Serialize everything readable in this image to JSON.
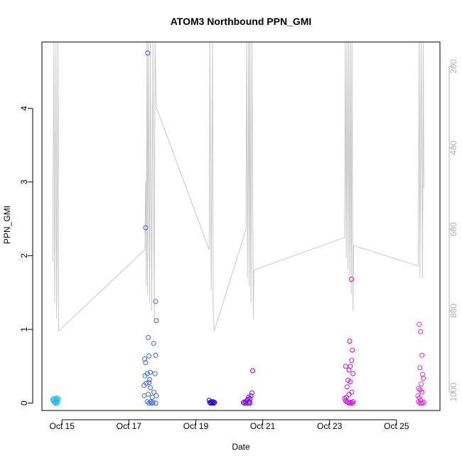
{
  "chart_data": {
    "type": "scatter",
    "title": "ATOM3 Northbound PPN_GMI",
    "xlabel": "Date",
    "ylabel": "PPN_GMI",
    "x_ticks": [
      {
        "day": 15,
        "label": "Oct 15"
      },
      {
        "day": 17,
        "label": "Oct 17"
      },
      {
        "day": 19,
        "label": "Oct 19"
      },
      {
        "day": 21,
        "label": "Oct 21"
      },
      {
        "day": 23,
        "label": "Oct 23"
      },
      {
        "day": 25,
        "label": "Oct 25"
      }
    ],
    "xlim_days": [
      14.4,
      26.3
    ],
    "ylim": [
      -0.1,
      4.9
    ],
    "y_ticks": [
      0,
      1,
      2,
      3,
      4
    ],
    "y2_ticks": [
      200,
      400,
      600,
      800,
      1000
    ],
    "y2lim": [
      1045,
      140
    ],
    "grid": false,
    "legend": "none",
    "depth_line_color": "#c8c8c8",
    "colors": {
      "oct14": "#1ab8f0",
      "oct17": "#3366ff",
      "oct19": "#2200ee",
      "oct20": "#8800ee",
      "oct23": "#dd00ee",
      "oct25": "#ee22dd"
    },
    "depth_line": [
      [
        14.72,
        680
      ],
      [
        14.76,
        140
      ],
      [
        14.78,
        780
      ],
      [
        14.8,
        520
      ],
      [
        14.82,
        140
      ],
      [
        14.84,
        820
      ],
      [
        14.86,
        600
      ],
      [
        14.88,
        140
      ],
      [
        14.9,
        850
      ],
      [
        17.48,
        650
      ],
      [
        17.5,
        480
      ],
      [
        17.52,
        740
      ],
      [
        17.54,
        140
      ],
      [
        17.56,
        760
      ],
      [
        17.58,
        140
      ],
      [
        17.62,
        780
      ],
      [
        17.64,
        140
      ],
      [
        17.68,
        800
      ],
      [
        17.72,
        140
      ],
      [
        17.76,
        820
      ],
      [
        17.78,
        140
      ],
      [
        17.82,
        300
      ],
      [
        19.4,
        650
      ],
      [
        19.42,
        140
      ],
      [
        19.46,
        750
      ],
      [
        19.5,
        140
      ],
      [
        19.52,
        790
      ],
      [
        19.55,
        850
      ],
      [
        20.5,
        600
      ],
      [
        20.52,
        140
      ],
      [
        20.55,
        720
      ],
      [
        20.58,
        140
      ],
      [
        20.6,
        740
      ],
      [
        20.62,
        140
      ],
      [
        20.65,
        780
      ],
      [
        20.68,
        140
      ],
      [
        20.72,
        820
      ],
      [
        20.74,
        700
      ],
      [
        23.45,
        620
      ],
      [
        23.47,
        140
      ],
      [
        23.5,
        670
      ],
      [
        23.52,
        140
      ],
      [
        23.55,
        700
      ],
      [
        23.57,
        140
      ],
      [
        23.6,
        720
      ],
      [
        23.62,
        140
      ],
      [
        23.65,
        760
      ],
      [
        23.67,
        140
      ],
      [
        23.7,
        800
      ],
      [
        23.72,
        640
      ],
      [
        25.65,
        690
      ],
      [
        25.68,
        140
      ],
      [
        25.7,
        720
      ],
      [
        25.74,
        140
      ],
      [
        25.78,
        720
      ],
      [
        25.8,
        140
      ],
      [
        25.82,
        500
      ]
    ],
    "series": [
      {
        "color_key": "oct14",
        "points": [
          [
            14.72,
            0.05
          ],
          [
            14.74,
            0.03
          ],
          [
            14.76,
            0.06
          ],
          [
            14.78,
            0.01
          ],
          [
            14.8,
            0.04
          ],
          [
            14.82,
            0.05
          ],
          [
            14.84,
            0.07
          ],
          [
            14.86,
            0.02
          ],
          [
            14.87,
            0.04
          ],
          [
            14.88,
            0.06
          ],
          [
            14.8,
            0.0
          ],
          [
            14.85,
            0.0
          ]
        ]
      },
      {
        "color_key": "oct17",
        "points": [
          [
            17.56,
            4.75
          ],
          [
            17.5,
            2.38
          ],
          [
            17.8,
            1.38
          ],
          [
            17.82,
            1.12
          ],
          [
            17.58,
            0.89
          ],
          [
            17.74,
            0.81
          ],
          [
            17.6,
            0.64
          ],
          [
            17.8,
            0.65
          ],
          [
            17.47,
            0.6
          ],
          [
            17.5,
            0.55
          ],
          [
            17.55,
            0.4
          ],
          [
            17.64,
            0.42
          ],
          [
            17.78,
            0.4
          ],
          [
            17.48,
            0.37
          ],
          [
            17.62,
            0.32
          ],
          [
            17.52,
            0.27
          ],
          [
            17.6,
            0.28
          ],
          [
            17.45,
            0.24
          ],
          [
            17.64,
            0.21
          ],
          [
            17.75,
            0.15
          ],
          [
            17.46,
            0.1
          ],
          [
            17.58,
            0.12
          ],
          [
            17.7,
            0.08
          ],
          [
            17.82,
            0.1
          ],
          [
            17.55,
            0.02
          ],
          [
            17.65,
            0.02
          ],
          [
            17.72,
            0.01
          ],
          [
            17.8,
            0.0
          ],
          [
            17.6,
            0.0
          ],
          [
            17.68,
            0.0
          ]
        ]
      },
      {
        "color_key": "oct19",
        "points": [
          [
            19.4,
            0.04
          ],
          [
            19.42,
            0.01
          ],
          [
            19.44,
            0.0
          ],
          [
            19.46,
            0.02
          ],
          [
            19.48,
            0.01
          ],
          [
            19.5,
            0.0
          ],
          [
            19.52,
            0.02
          ],
          [
            19.54,
            0.0
          ],
          [
            19.56,
            0.01
          ]
        ]
      },
      {
        "color_key": "oct20",
        "points": [
          [
            20.42,
            0.01
          ],
          [
            20.45,
            0.0
          ],
          [
            20.48,
            0.02
          ],
          [
            20.5,
            0.0
          ],
          [
            20.52,
            0.03
          ],
          [
            20.55,
            0.05
          ],
          [
            20.58,
            0.08
          ],
          [
            20.6,
            0.02
          ],
          [
            20.62,
            0.06
          ],
          [
            20.65,
            0.1
          ],
          [
            20.68,
            0.14
          ],
          [
            20.7,
            0.44
          ],
          [
            20.58,
            0.0
          ],
          [
            20.62,
            0.0
          ]
        ]
      },
      {
        "color_key": "oct23",
        "points": [
          [
            23.65,
            1.68
          ],
          [
            23.6,
            0.84
          ],
          [
            23.68,
            0.72
          ],
          [
            23.66,
            0.58
          ],
          [
            23.62,
            0.5
          ],
          [
            23.48,
            0.5
          ],
          [
            23.58,
            0.45
          ],
          [
            23.7,
            0.4
          ],
          [
            23.55,
            0.31
          ],
          [
            23.62,
            0.29
          ],
          [
            23.52,
            0.22
          ],
          [
            23.66,
            0.15
          ],
          [
            23.58,
            0.12
          ],
          [
            23.5,
            0.08
          ],
          [
            23.45,
            0.06
          ],
          [
            23.48,
            0.03
          ],
          [
            23.52,
            0.02
          ],
          [
            23.55,
            0.01
          ],
          [
            23.6,
            0.0
          ],
          [
            23.64,
            0.01
          ],
          [
            23.68,
            0.0
          ],
          [
            23.7,
            0.02
          ]
        ]
      },
      {
        "color_key": "oct25",
        "points": [
          [
            25.68,
            1.07
          ],
          [
            25.72,
            0.97
          ],
          [
            25.76,
            0.65
          ],
          [
            25.7,
            0.48
          ],
          [
            25.78,
            0.39
          ],
          [
            25.8,
            0.34
          ],
          [
            25.74,
            0.26
          ],
          [
            25.66,
            0.2
          ],
          [
            25.7,
            0.18
          ],
          [
            25.76,
            0.15
          ],
          [
            25.64,
            0.1
          ],
          [
            25.68,
            0.07
          ],
          [
            25.72,
            0.04
          ],
          [
            25.66,
            0.02
          ],
          [
            25.7,
            0.0
          ],
          [
            25.74,
            0.0
          ],
          [
            25.78,
            0.0
          ],
          [
            25.82,
            0.01
          ]
        ]
      }
    ]
  }
}
